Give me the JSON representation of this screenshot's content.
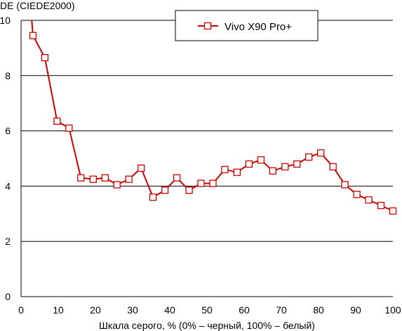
{
  "chart_data": {
    "type": "line",
    "ylabel": "DE (CIEDE2000)",
    "xlabel": "Шкала серого, % (0% – черный, 100% – белый)",
    "xlim": [
      0,
      100
    ],
    "ylim": [
      0,
      10
    ],
    "x_ticks": [
      "0",
      "10",
      "20",
      "30",
      "40",
      "50",
      "60",
      "70",
      "80",
      "90",
      "100"
    ],
    "y_ticks": [
      "0",
      "2",
      "4",
      "6",
      "8",
      "10"
    ],
    "grid": "horizontal",
    "legend_position": "top-center",
    "series": [
      {
        "name": "Vivo X90 Pro+",
        "color": "#cc0000",
        "marker": "hollow-square",
        "x": [
          0,
          3.2,
          6.4,
          9.7,
          12.9,
          16.1,
          19.4,
          22.6,
          25.8,
          29.0,
          32.3,
          35.5,
          38.7,
          41.9,
          45.2,
          48.4,
          51.6,
          54.8,
          58.1,
          61.3,
          64.5,
          67.7,
          71.0,
          74.2,
          77.4,
          80.6,
          83.9,
          87.1,
          90.3,
          93.5,
          96.8,
          100
        ],
        "y": [
          15,
          9.45,
          8.65,
          6.35,
          6.1,
          4.3,
          4.25,
          4.3,
          4.05,
          4.25,
          4.65,
          3.6,
          3.85,
          4.3,
          3.85,
          4.1,
          4.1,
          4.6,
          4.5,
          4.8,
          4.95,
          4.55,
          4.7,
          4.8,
          5.05,
          5.2,
          4.7,
          4.05,
          3.7,
          3.5,
          3.3,
          3.1
        ]
      }
    ]
  }
}
